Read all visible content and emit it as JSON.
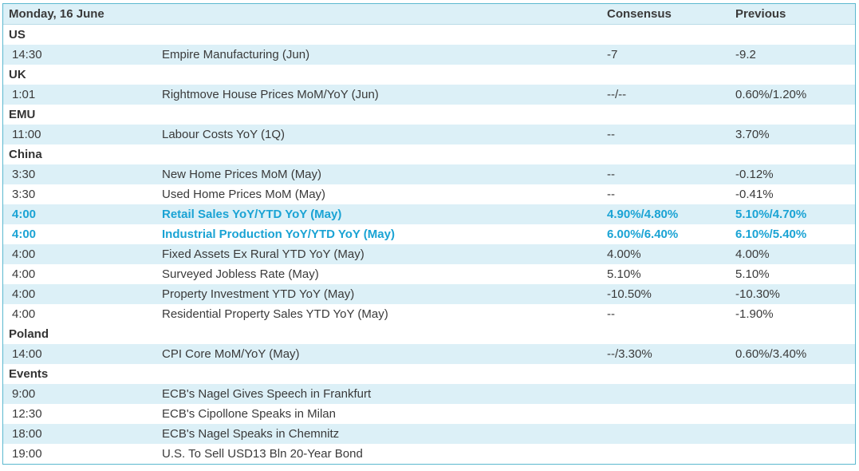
{
  "header": {
    "date": "Monday, 16 June",
    "consensus_label": "Consensus",
    "previous_label": "Previous"
  },
  "colors": {
    "border": "#5bb8cf",
    "band": "#dcf0f7",
    "highlight": "#1aa3d4"
  },
  "sections": [
    {
      "name": "US",
      "rows": [
        {
          "time": "14:30",
          "event": "Empire Manufacturing (Jun)",
          "consensus": "-7",
          "previous": "-9.2",
          "highlight": false
        }
      ]
    },
    {
      "name": "UK",
      "rows": [
        {
          "time": "1:01",
          "event": "Rightmove House Prices MoM/YoY (Jun)",
          "consensus": "--/--",
          "previous": "0.60%/1.20%",
          "highlight": false
        }
      ]
    },
    {
      "name": "EMU",
      "rows": [
        {
          "time": "11:00",
          "event": "Labour Costs YoY (1Q)",
          "consensus": "--",
          "previous": "3.70%",
          "highlight": false
        }
      ]
    },
    {
      "name": "China",
      "rows": [
        {
          "time": "3:30",
          "event": "New Home Prices MoM (May)",
          "consensus": "--",
          "previous": "-0.12%",
          "highlight": false
        },
        {
          "time": "3:30",
          "event": "Used Home Prices MoM (May)",
          "consensus": "--",
          "previous": "-0.41%",
          "highlight": false
        },
        {
          "time": "4:00",
          "event": "Retail Sales YoY/YTD YoY (May)",
          "consensus": "4.90%/4.80%",
          "previous": "5.10%/4.70%",
          "highlight": true
        },
        {
          "time": "4:00",
          "event": "Industrial Production YoY/YTD YoY (May)",
          "consensus": "6.00%/6.40%",
          "previous": "6.10%/5.40%",
          "highlight": true
        },
        {
          "time": "4:00",
          "event": "Fixed Assets Ex Rural YTD YoY (May)",
          "consensus": "4.00%",
          "previous": "4.00%",
          "highlight": false
        },
        {
          "time": "4:00",
          "event": "Surveyed Jobless Rate (May)",
          "consensus": "5.10%",
          "previous": "5.10%",
          "highlight": false
        },
        {
          "time": "4:00",
          "event": "Property Investment YTD YoY (May)",
          "consensus": "-10.50%",
          "previous": "-10.30%",
          "highlight": false
        },
        {
          "time": "4:00",
          "event": "Residential Property Sales YTD YoY (May)",
          "consensus": "--",
          "previous": "-1.90%",
          "highlight": false
        }
      ]
    },
    {
      "name": "Poland",
      "rows": [
        {
          "time": "14:00",
          "event": "CPI Core MoM/YoY (May)",
          "consensus": "--/3.30%",
          "previous": "0.60%/3.40%",
          "highlight": false
        }
      ]
    },
    {
      "name": "Events",
      "rows": [
        {
          "time": "9:00",
          "event": "ECB's Nagel Gives Speech in Frankfurt",
          "consensus": "",
          "previous": "",
          "highlight": false
        },
        {
          "time": "12:30",
          "event": "ECB's Cipollone Speaks in Milan",
          "consensus": "",
          "previous": "",
          "highlight": false
        },
        {
          "time": "18:00",
          "event": "ECB's Nagel Speaks in Chemnitz",
          "consensus": "",
          "previous": "",
          "highlight": false
        },
        {
          "time": "19:00",
          "event": "U.S. To Sell USD13 Bln 20-Year Bond",
          "consensus": "",
          "previous": "",
          "highlight": false
        }
      ]
    }
  ]
}
